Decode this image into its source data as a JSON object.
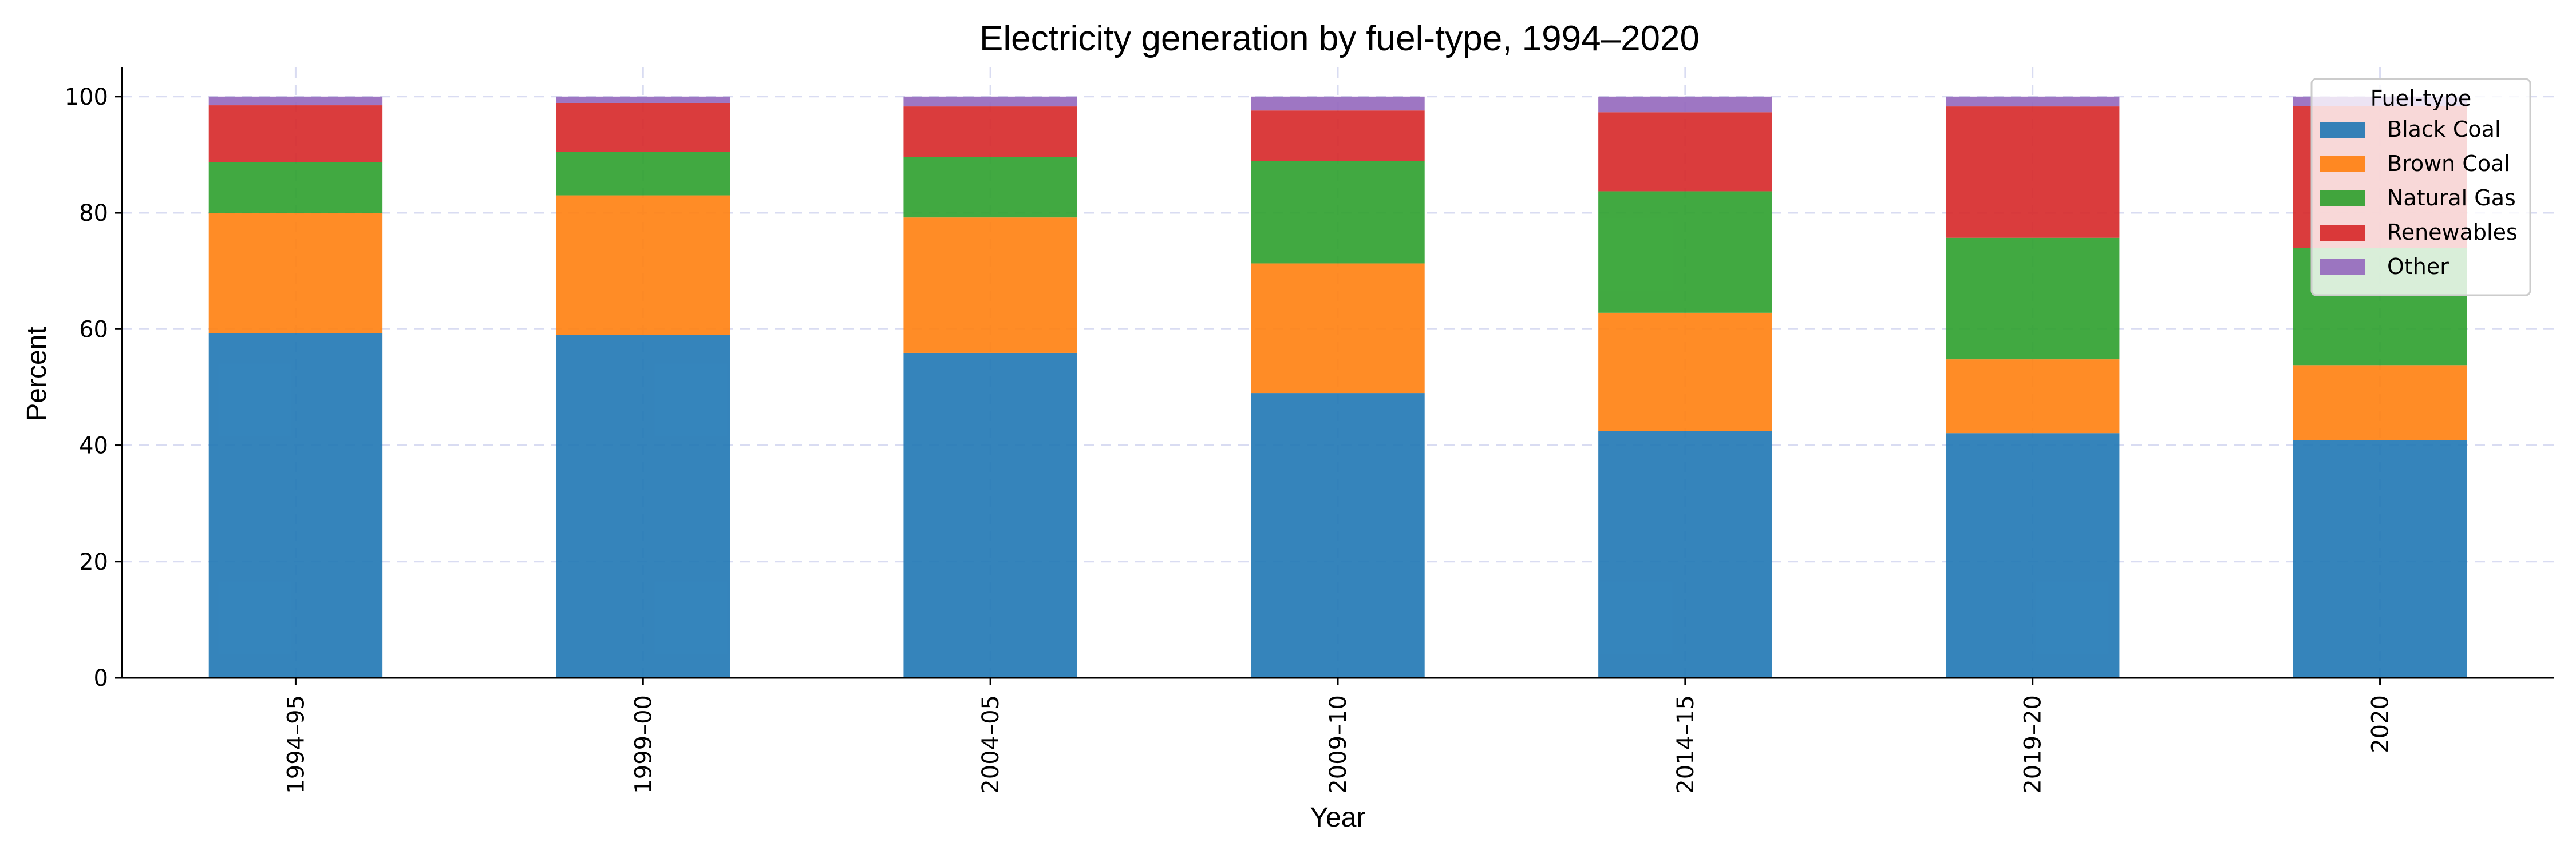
{
  "chart_data": {
    "type": "bar",
    "stacked": true,
    "title": "Electricity generation by fuel-type, 1994–2020",
    "xlabel": "Year",
    "ylabel": "Percent",
    "ylim": [
      0,
      105
    ],
    "yticks": [
      0,
      20,
      40,
      60,
      80,
      100
    ],
    "grid": true,
    "legend": {
      "title": "Fuel-type",
      "placement": "top-right"
    },
    "categories": [
      "1994–95",
      "1999–00",
      "2004–05",
      "2009–10",
      "2014–15",
      "2019–20",
      "2020"
    ],
    "series": [
      {
        "name": "Black Coal",
        "color": "#1f77b4",
        "values": [
          59.3,
          59.0,
          55.9,
          49.0,
          42.5,
          42.1,
          40.9
        ]
      },
      {
        "name": "Brown Coal",
        "color": "#ff7f0e",
        "values": [
          20.7,
          24.0,
          23.3,
          22.3,
          20.3,
          12.7,
          12.9
        ]
      },
      {
        "name": "Natural Gas",
        "color": "#2ca02c",
        "values": [
          8.7,
          7.5,
          10.4,
          17.6,
          20.9,
          20.9,
          20.2
        ]
      },
      {
        "name": "Renewables",
        "color": "#d62728",
        "values": [
          9.8,
          8.4,
          8.7,
          8.7,
          13.6,
          22.6,
          24.4
        ]
      },
      {
        "name": "Other",
        "color": "#9467bd",
        "values": [
          1.5,
          1.1,
          1.7,
          2.4,
          2.7,
          1.7,
          1.6
        ]
      }
    ]
  }
}
